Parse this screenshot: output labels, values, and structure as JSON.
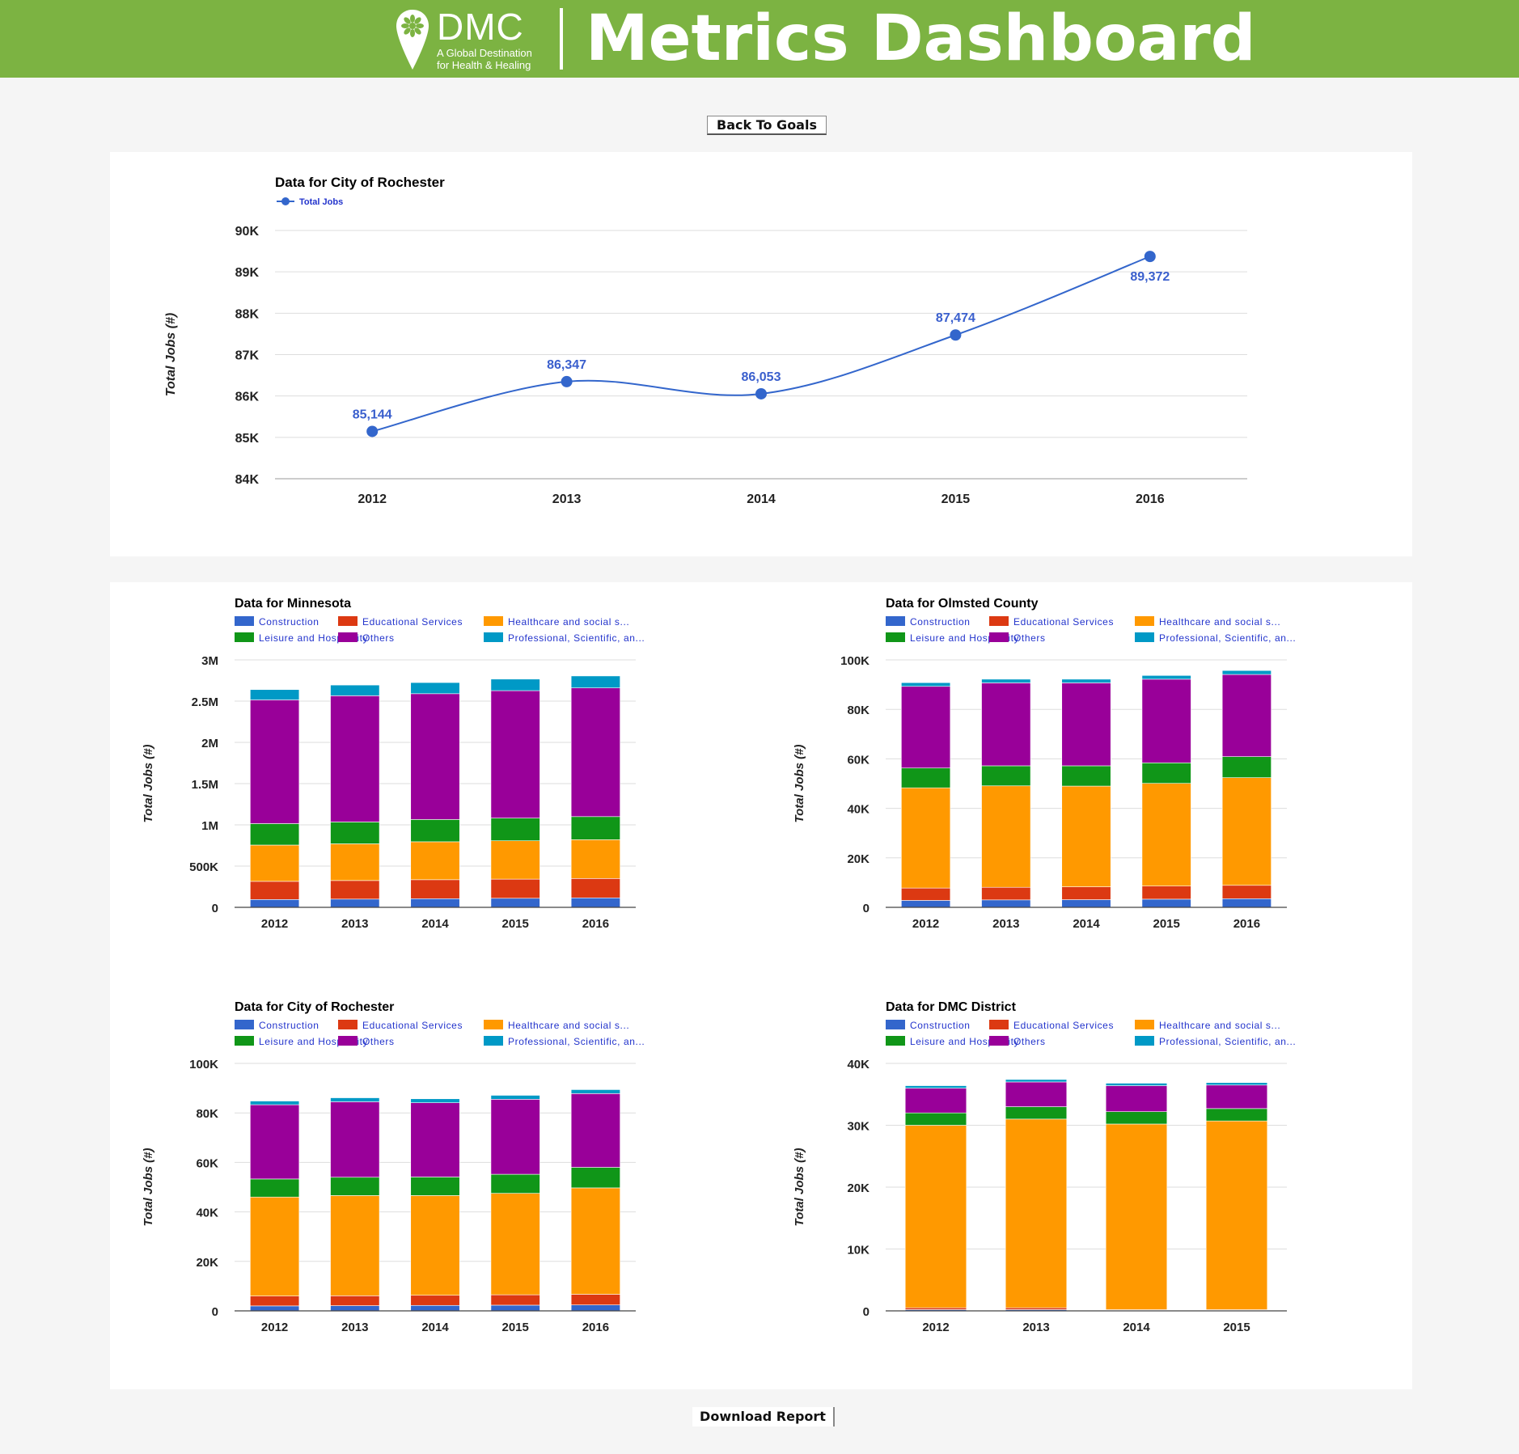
{
  "header": {
    "logo_text": "DMC",
    "logo_tagline_1": "A Global Destination",
    "logo_tagline_2": "for Health & Healing",
    "title": "Metrics Dashboard"
  },
  "buttons": {
    "back_label": "Back To Goals",
    "download_label": "Download Report"
  },
  "colors": {
    "header_bg": "#7cb342",
    "Construction": "#3366cc",
    "Educational Services": "#dc3912",
    "Healthcare and social s...": "#ff9900",
    "Leisure and Hospitality": "#109618",
    "Others": "#990099",
    "Professional, Scientific, an...": "#0099c6"
  },
  "chart_data": [
    {
      "id": "line-rochester",
      "type": "line",
      "title": "Data for City of Rochester",
      "ylabel": "Total Jobs (#)",
      "legend_position": "top-left",
      "x": [
        "2012",
        "2013",
        "2014",
        "2015",
        "2016"
      ],
      "series": [
        {
          "name": "Total Jobs",
          "color": "#3366cc",
          "values": [
            85144,
            86347,
            86053,
            87474,
            89372
          ],
          "labels": [
            "85,144",
            "86,347",
            "86,053",
            "87,474",
            "89,372"
          ]
        }
      ],
      "ylim": [
        84000,
        90000
      ],
      "yticks": [
        84000,
        85000,
        86000,
        87000,
        88000,
        89000,
        90000
      ],
      "ytick_labels": [
        "84K",
        "85K",
        "86K",
        "87K",
        "88K",
        "89K",
        "90K"
      ],
      "grid": true
    },
    {
      "id": "bar-minnesota",
      "type": "bar",
      "stacked": true,
      "title": "Data for Minnesota",
      "ylabel": "Total Jobs (#)",
      "legend_position": "top",
      "categories": [
        "2012",
        "2013",
        "2014",
        "2015",
        "2016"
      ],
      "series": [
        {
          "name": "Construction",
          "values": [
            95000,
            100000,
            105000,
            110000,
            115000
          ]
        },
        {
          "name": "Educational Services",
          "values": [
            220000,
            225000,
            230000,
            232000,
            235000
          ]
        },
        {
          "name": "Healthcare and social s...",
          "values": [
            440000,
            445000,
            460000,
            465000,
            470000
          ]
        },
        {
          "name": "Leisure and Hospitality",
          "values": [
            260000,
            265000,
            270000,
            275000,
            280000
          ]
        },
        {
          "name": "Others",
          "values": [
            1500000,
            1530000,
            1525000,
            1545000,
            1560000
          ]
        },
        {
          "name": "Professional, Scientific, an...",
          "values": [
            125000,
            130000,
            135000,
            140000,
            145000
          ]
        }
      ],
      "ylim": [
        0,
        3000000
      ],
      "yticks": [
        0,
        500000,
        1000000,
        1500000,
        2000000,
        2500000,
        3000000
      ],
      "ytick_labels": [
        "0",
        "500K",
        "1M",
        "1.5M",
        "2M",
        "2.5M",
        "3M"
      ],
      "grid": true
    },
    {
      "id": "bar-olmsted",
      "type": "bar",
      "stacked": true,
      "title": "Data for Olmsted County",
      "ylabel": "Total Jobs (#)",
      "legend_position": "top",
      "categories": [
        "2012",
        "2013",
        "2014",
        "2015",
        "2016"
      ],
      "series": [
        {
          "name": "Construction",
          "values": [
            2800,
            3000,
            3100,
            3300,
            3500
          ]
        },
        {
          "name": "Educational Services",
          "values": [
            5000,
            5100,
            5200,
            5300,
            5400
          ]
        },
        {
          "name": "Healthcare and social s...",
          "values": [
            40500,
            41000,
            40700,
            41500,
            43500
          ]
        },
        {
          "name": "Leisure and Hospitality",
          "values": [
            8000,
            8100,
            8200,
            8300,
            8500
          ]
        },
        {
          "name": "Others",
          "values": [
            33000,
            33500,
            33500,
            33800,
            33200
          ]
        },
        {
          "name": "Professional, Scientific, an...",
          "values": [
            1500,
            1500,
            1500,
            1500,
            1600
          ]
        }
      ],
      "ylim": [
        0,
        100000
      ],
      "yticks": [
        0,
        20000,
        40000,
        60000,
        80000,
        100000
      ],
      "ytick_labels": [
        "0",
        "20K",
        "40K",
        "60K",
        "80K",
        "100K"
      ],
      "grid": true
    },
    {
      "id": "bar-rochester",
      "type": "bar",
      "stacked": true,
      "title": "Data for City of Rochester",
      "ylabel": "Total Jobs (#)",
      "legend_position": "top",
      "categories": [
        "2012",
        "2013",
        "2014",
        "2015",
        "2016"
      ],
      "series": [
        {
          "name": "Construction",
          "values": [
            2000,
            2100,
            2200,
            2300,
            2400
          ]
        },
        {
          "name": "Educational Services",
          "values": [
            4000,
            4000,
            4100,
            4200,
            4300
          ]
        },
        {
          "name": "Healthcare and social s...",
          "values": [
            40000,
            40500,
            40300,
            41000,
            43000
          ]
        },
        {
          "name": "Leisure and Hospitality",
          "values": [
            7300,
            7400,
            7500,
            7700,
            8300
          ]
        },
        {
          "name": "Others",
          "values": [
            30000,
            30500,
            30000,
            30300,
            29800
          ]
        },
        {
          "name": "Professional, Scientific, an...",
          "values": [
            1500,
            1600,
            1600,
            1600,
            1600
          ]
        }
      ],
      "ylim": [
        0,
        100000
      ],
      "yticks": [
        0,
        20000,
        40000,
        60000,
        80000,
        100000
      ],
      "ytick_labels": [
        "0",
        "20K",
        "40K",
        "60K",
        "80K",
        "100K"
      ],
      "grid": true
    },
    {
      "id": "bar-dmc",
      "type": "bar",
      "stacked": true,
      "title": "Data for DMC District",
      "ylabel": "Total Jobs (#)",
      "legend_position": "top",
      "categories": [
        "2012",
        "2013",
        "2014",
        "2015"
      ],
      "series": [
        {
          "name": "Construction",
          "values": [
            200,
            200,
            100,
            100
          ]
        },
        {
          "name": "Educational Services",
          "values": [
            300,
            300,
            100,
            100
          ]
        },
        {
          "name": "Healthcare and social s...",
          "values": [
            29500,
            30500,
            30000,
            30500
          ]
        },
        {
          "name": "Leisure and Hospitality",
          "values": [
            2000,
            2000,
            2000,
            2000
          ]
        },
        {
          "name": "Others",
          "values": [
            4000,
            4000,
            4200,
            3800
          ]
        },
        {
          "name": "Professional, Scientific, an...",
          "values": [
            400,
            400,
            400,
            400
          ]
        }
      ],
      "ylim": [
        0,
        40000
      ],
      "yticks": [
        0,
        10000,
        20000,
        30000,
        40000
      ],
      "ytick_labels": [
        "0",
        "10K",
        "20K",
        "30K",
        "40K"
      ],
      "grid": true
    }
  ]
}
